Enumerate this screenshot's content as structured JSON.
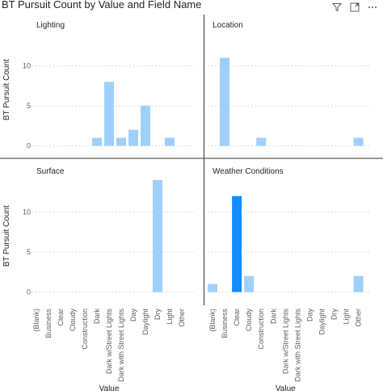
{
  "header": {
    "title": "BT Pursuit Count by Value and Field Name"
  },
  "toolbar": {
    "icons": [
      "filter-icon",
      "focus-mode-icon",
      "more-options-icon"
    ]
  },
  "chart_data": {
    "type": "bar",
    "layout": "small-multiples",
    "title": "BT Pursuit Count by Value and Field Name",
    "xlabel": "Value",
    "ylabel": "BT Pursuit Count",
    "ylim": [
      0,
      14
    ],
    "yticks": [
      0,
      5,
      10
    ],
    "grid": true,
    "bar_color": "#9fd0fb",
    "highlight_color": "#118dff",
    "panels": [
      {
        "name": "Lighting",
        "categories": [
          "(Blank)",
          "Business",
          "Clear",
          "Cloudy",
          "Construction",
          "Dark",
          "Dark w/Street Lights",
          "Dark with Street Lights",
          "Day",
          "Daylight",
          "Dry",
          "Light",
          "Other"
        ],
        "values": [
          0,
          0,
          0,
          0,
          0,
          1,
          8,
          1,
          2,
          5,
          0,
          1,
          0
        ]
      },
      {
        "name": "Location",
        "categories": [
          "(Blank)",
          "Business",
          "Clear",
          "Cloudy",
          "Construction",
          "Dark",
          "Dark w/Street Lights",
          "Dark with Street Lights",
          "Day",
          "Daylight",
          "Dry",
          "Light",
          "Other"
        ],
        "values": [
          0,
          11,
          0,
          0,
          1,
          0,
          0,
          0,
          0,
          0,
          0,
          0,
          1
        ]
      },
      {
        "name": "Surface",
        "categories": [
          "(Blank)",
          "Business",
          "Clear",
          "Cloudy",
          "Construction",
          "Dark",
          "Dark w/Street Lights",
          "Dark with Street Lights",
          "Day",
          "Daylight",
          "Dry",
          "Light",
          "Other"
        ],
        "values": [
          0,
          0,
          0,
          0,
          0,
          0,
          0,
          0,
          0,
          0,
          14,
          0,
          0
        ]
      },
      {
        "name": "Weather Conditions",
        "categories": [
          "(Blank)",
          "Business",
          "Clear",
          "Cloudy",
          "Construction",
          "Dark",
          "Dark w/Street Lights",
          "Dark with Street Lights",
          "Day",
          "Daylight",
          "Dry",
          "Light",
          "Other"
        ],
        "values": [
          1,
          0,
          12,
          2,
          0,
          0,
          0,
          0,
          0,
          0,
          0,
          0,
          2
        ],
        "highlighted": [
          "Clear"
        ]
      }
    ]
  }
}
